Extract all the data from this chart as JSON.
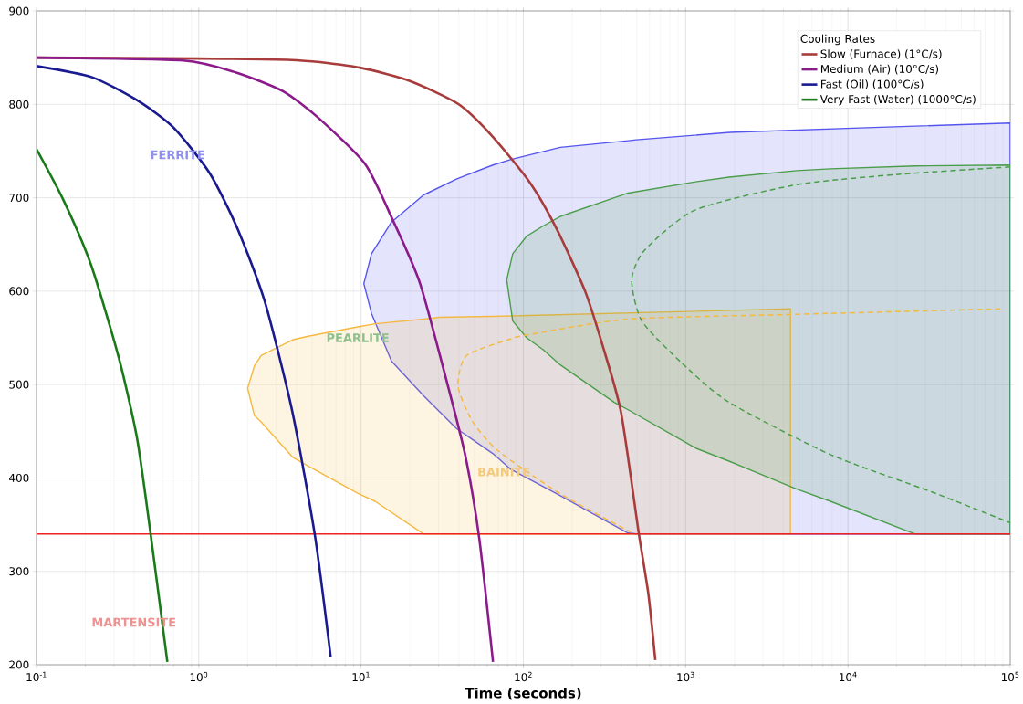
{
  "chart_data": {
    "type": "line",
    "xlabel": "Time (seconds)",
    "legend_title": "Cooling Rates",
    "legend": "top right",
    "grid": true,
    "log": "x",
    "xlim": [
      0.1,
      100000
    ],
    "ylim": [
      200,
      900
    ],
    "xticks": [
      {
        "value": 0.1,
        "label": "10$^{-1}$"
      },
      {
        "value": 1,
        "label": "10$^{0}$"
      },
      {
        "value": 10,
        "label": "10$^{1}$"
      },
      {
        "value": 100,
        "label": "10$^{2}$"
      },
      {
        "value": 1000,
        "label": "10$^{3}$"
      },
      {
        "value": 10000,
        "label": "10$^{4}$"
      },
      {
        "value": 100000,
        "label": "10$^{5}$"
      }
    ],
    "yticks": [
      200,
      300,
      400,
      500,
      600,
      700,
      800,
      900
    ],
    "ref_lines": [
      {
        "axis": "y",
        "value": 340,
        "color": "#ee2222"
      }
    ],
    "annotations": [
      "FERRITE",
      "PEARLITE",
      "BAINITE",
      "MARTENSITE"
    ],
    "series": [
      {
        "type": "area",
        "color": "#5555ee",
        "x": [
          100000,
          13100,
          1880,
          496,
          442,
          169,
          84,
          65,
          38.7,
          24.3,
          15.4,
          11.6,
          10.4,
          11.6,
          15.4,
          24.3,
          38.7,
          65,
          84,
          169,
          442,
          496,
          100000
        ],
        "values": [
          780,
          775,
          770,
          762,
          761,
          754,
          741,
          735,
          720,
          703,
          674,
          640,
          608,
          576,
          525,
          488,
          453,
          426,
          409,
          381,
          341,
          340,
          340
        ]
      },
      {
        "type": "area",
        "color": "#f5b942",
        "x": [
          4420,
          64.6,
          30.6,
          24.3,
          12.2,
          9.7,
          4.8,
          3.8,
          2.42,
          2.2,
          2,
          2.2,
          2.42,
          3.8,
          4.8,
          9.7,
          12.2,
          24.3,
          4420
        ],
        "values": [
          581,
          573,
          572,
          570,
          565,
          562,
          552,
          548,
          531,
          520,
          496,
          467,
          460,
          422,
          412,
          383,
          375,
          340,
          340
        ]
      },
      {
        "type": "area",
        "color": "#4a9e4a",
        "x": [
          100000,
          26000,
          7800,
          4840,
          1850,
          1150,
          442,
          363,
          169,
          133,
          105,
          86,
          79,
          86,
          105,
          133,
          169,
          363,
          442,
          1150,
          1850,
          4840,
          7800,
          26000,
          100000
        ],
        "values": [
          735,
          734,
          731,
          729,
          722,
          717,
          705,
          700,
          680,
          670,
          659,
          640,
          612,
          568,
          550,
          537,
          521,
          481,
          473,
          432,
          418,
          388,
          375,
          340,
          340
        ]
      },
      {
        "type": "line",
        "line_style": "dashed",
        "color": "#f5b942",
        "x": [
          87000,
          4420,
          442,
          105,
          84,
          44.6,
          39.6,
          48.8,
          70,
          169,
          460
        ],
        "values": [
          581,
          575,
          570,
          553,
          549,
          531,
          498,
          460,
          429,
          383,
          342
        ]
      },
      {
        "type": "line",
        "line_style": "dashed",
        "color": "#4a9e4a",
        "x": [
          100000,
          20400,
          4840,
          1150,
          560,
          465,
          537,
          948,
          1850,
          7800,
          32900,
          100000
        ],
        "values": [
          733,
          725,
          714,
          687,
          644,
          612,
          568,
          523,
          481,
          425,
          385,
          352
        ]
      },
      {
        "name": "Slow (Furnace) (1°C/s)",
        "color": "#a83c3c",
        "x": [
          0.1,
          1,
          3,
          5,
          10,
          20,
          40,
          65,
          110,
          160,
          240,
          310,
          400,
          515,
          590,
          650
        ],
        "values": [
          850,
          849,
          848,
          846,
          839,
          825,
          800,
          765,
          716,
          667,
          600,
          540,
          470,
          340,
          275,
          205
        ]
      },
      {
        "name": "Medium (Air) (10°C/s)",
        "color": "#8b1a8b",
        "x": [
          0.1,
          0.8,
          1.7,
          3.3,
          5.5,
          10.6,
          15.6,
          23,
          34,
          44,
          53.5,
          65
        ],
        "values": [
          850,
          847,
          834,
          814,
          785,
          736,
          677,
          609,
          501,
          423,
          335,
          203
        ]
      },
      {
        "name": "Fast (Oil) (100°C/s)",
        "color": "#191990",
        "x": [
          0.1,
          0.22,
          0.42,
          0.7,
          1.17,
          1.73,
          2.55,
          3.76,
          5.2,
          6.5
        ],
        "values": [
          841,
          829,
          804,
          775,
          726,
          667,
          589,
          472,
          338,
          208
        ]
      },
      {
        "name": "Very Fast (Water) (1000°C/s)",
        "color": "#1a7a1a",
        "x": [
          0.1,
          0.147,
          0.217,
          0.32,
          0.416,
          0.505,
          0.64
        ],
        "values": [
          752,
          697,
          628,
          530,
          443,
          340,
          203
        ]
      }
    ]
  }
}
